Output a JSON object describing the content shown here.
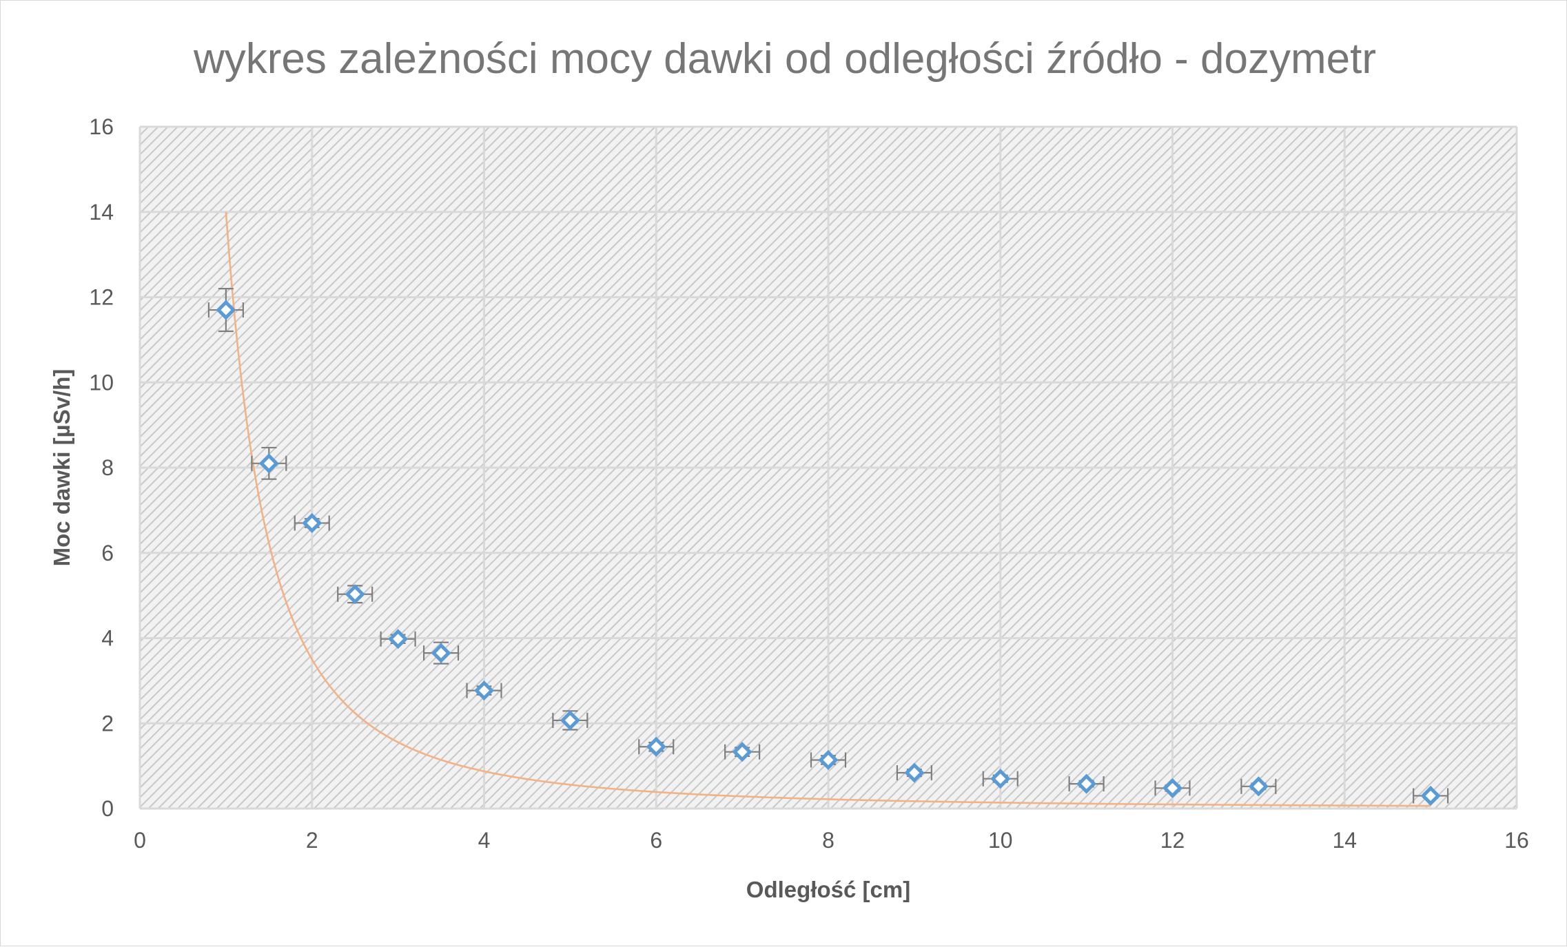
{
  "colors": {
    "marker": "#5b9bd5",
    "fit_line": "#f4b183",
    "hatch_dark": "#c8c8c8",
    "hatch_light": "#f2f2f2"
  },
  "chart_data": {
    "type": "scatter",
    "title": "wykres zależności mocy dawki od odległości źródło - dozymetr",
    "xlabel": "Odległość [cm]",
    "ylabel": "Moc dawki [µSv/h]",
    "xlim": [
      0,
      16
    ],
    "ylim": [
      0,
      16
    ],
    "x_ticks": [
      0,
      2,
      4,
      6,
      8,
      10,
      12,
      14,
      16
    ],
    "y_ticks": [
      0,
      2,
      4,
      6,
      8,
      10,
      12,
      14,
      16
    ],
    "grid": true,
    "legend": "none",
    "series": [
      {
        "marker": "hollow-diamond",
        "x": [
          1,
          1.5,
          2,
          2.5,
          3,
          3.5,
          4,
          5,
          6,
          7,
          8,
          9,
          10,
          11,
          12,
          13,
          15
        ],
        "y": [
          11.7,
          8.1,
          6.7,
          5.03,
          3.98,
          3.65,
          2.77,
          2.07,
          1.45,
          1.33,
          1.14,
          0.84,
          0.7,
          0.58,
          0.48,
          0.52,
          0.3
        ],
        "x_error": 0.2,
        "y_error": [
          0.5,
          0.37,
          0.1,
          0.2,
          0.1,
          0.25,
          0.1,
          0.22,
          0.1,
          0.1,
          0.1,
          0.08,
          0.08,
          0.07,
          0.07,
          0.07,
          0.05
        ]
      }
    ],
    "fit_curve": {
      "model": "y = a / x^2",
      "a": 14,
      "x_range": [
        1,
        15
      ]
    }
  }
}
